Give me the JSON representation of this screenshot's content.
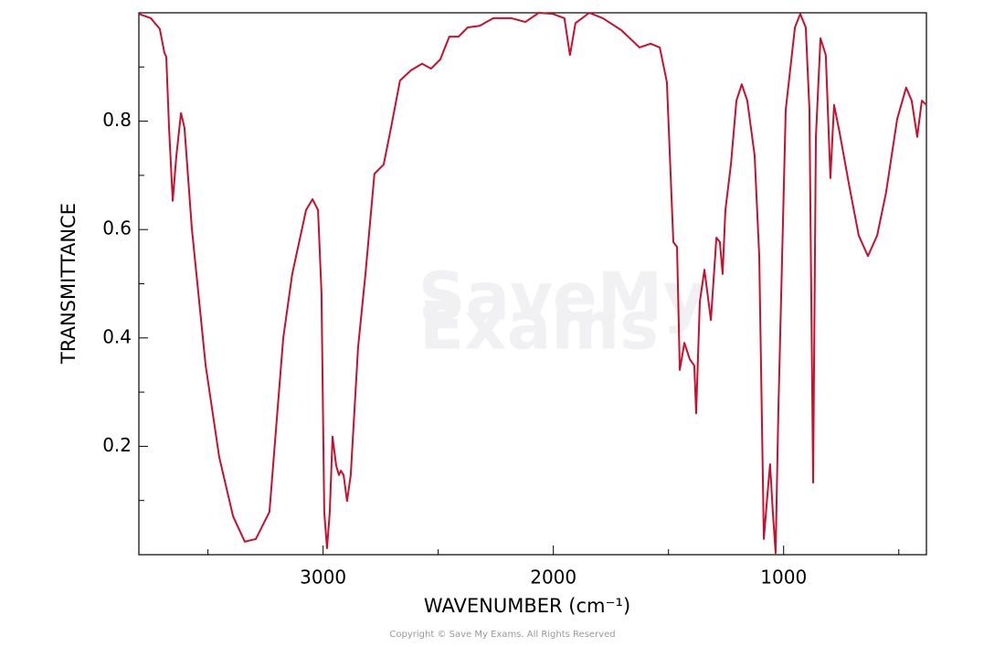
{
  "chart_data": {
    "type": "line",
    "xlabel": "WAVENUMBER  (cm⁻¹)",
    "ylabel": "TRANSMITTANCE",
    "watermark": [
      "SaveMy",
      "Exams"
    ],
    "copyright": "Copyright © Save My Exams. All Rights Reserved",
    "xlim": [
      3800,
      380
    ],
    "ylim": [
      0,
      1
    ],
    "xticks": [
      3000,
      2000,
      1000
    ],
    "yticks": [
      0.2,
      0.4,
      0.6,
      0.8
    ],
    "xminorticks": [
      3500,
      2500,
      1500,
      500
    ],
    "yminorticks": [
      0.1,
      0.3,
      0.5,
      0.7,
      0.9
    ],
    "grid": false,
    "color": "#c8102e",
    "x": [
      3800,
      3748,
      3709,
      3689,
      3681,
      3669,
      3653,
      3637,
      3617,
      3602,
      3570,
      3510,
      3451,
      3391,
      3340,
      3292,
      3233,
      3173,
      3134,
      3074,
      3046,
      3022,
      3007,
      2995,
      2983,
      2971,
      2959,
      2943,
      2931,
      2923,
      2911,
      2896,
      2880,
      2848,
      2816,
      2777,
      2737,
      2705,
      2666,
      2618,
      2570,
      2531,
      2491,
      2452,
      2412,
      2372,
      2320,
      2261,
      2182,
      2122,
      2063,
      2003,
      1952,
      1928,
      1904,
      1844,
      1785,
      1705,
      1626,
      1578,
      1538,
      1507,
      1479,
      1463,
      1451,
      1431,
      1408,
      1388,
      1380,
      1364,
      1344,
      1316,
      1292,
      1277,
      1265,
      1253,
      1229,
      1205,
      1182,
      1158,
      1126,
      1106,
      1086,
      1070,
      1059,
      1047,
      1035,
      1023,
      991,
      951,
      928,
      904,
      888,
      872,
      860,
      840,
      817,
      797,
      781,
      757,
      714,
      674,
      634,
      594,
      555,
      507,
      468,
      444,
      420,
      400,
      380
    ],
    "values": [
      0.998,
      0.99,
      0.97,
      0.926,
      0.919,
      0.788,
      0.653,
      0.737,
      0.815,
      0.788,
      0.602,
      0.349,
      0.18,
      0.071,
      0.024,
      0.029,
      0.079,
      0.4,
      0.518,
      0.636,
      0.656,
      0.636,
      0.484,
      0.079,
      0.012,
      0.079,
      0.218,
      0.164,
      0.147,
      0.155,
      0.147,
      0.099,
      0.147,
      0.383,
      0.518,
      0.703,
      0.72,
      0.788,
      0.875,
      0.894,
      0.906,
      0.897,
      0.914,
      0.956,
      0.956,
      0.973,
      0.976,
      0.99,
      0.99,
      0.983,
      1.0,
      0.998,
      0.99,
      0.922,
      0.981,
      1.0,
      0.99,
      0.968,
      0.936,
      0.943,
      0.936,
      0.872,
      0.577,
      0.568,
      0.341,
      0.391,
      0.361,
      0.349,
      0.261,
      0.467,
      0.526,
      0.433,
      0.585,
      0.577,
      0.518,
      0.636,
      0.72,
      0.838,
      0.868,
      0.838,
      0.737,
      0.551,
      0.029,
      0.113,
      0.167,
      0.079,
      0.003,
      0.265,
      0.821,
      0.973,
      0.998,
      0.973,
      0.821,
      0.133,
      0.771,
      0.953,
      0.922,
      0.695,
      0.83,
      0.779,
      0.678,
      0.589,
      0.551,
      0.589,
      0.669,
      0.804,
      0.862,
      0.838,
      0.771,
      0.838,
      0.83
    ]
  }
}
